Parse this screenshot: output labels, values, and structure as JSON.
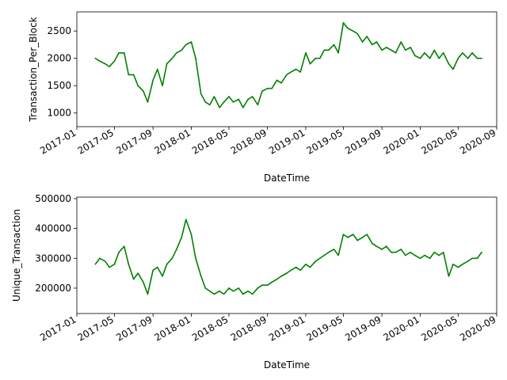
{
  "chart_data": [
    {
      "type": "line",
      "xlabel": "DateTime",
      "ylabel": "Transaction_Per_Block",
      "color": "#008000",
      "xlim": [
        "2017-01-01",
        "2020-09-01"
      ],
      "ylim": [
        750,
        2850
      ],
      "yticks": [
        1000,
        1500,
        2000,
        2500
      ],
      "xticks": [
        "2017-01",
        "2017-05",
        "2017-09",
        "2018-01",
        "2018-05",
        "2018-09",
        "2019-01",
        "2019-05",
        "2019-09",
        "2020-01",
        "2020-05",
        "2020-09"
      ],
      "x": [
        "2017-03-01",
        "2017-03-15",
        "2017-04-01",
        "2017-04-15",
        "2017-05-01",
        "2017-05-15",
        "2017-06-01",
        "2017-06-15",
        "2017-07-01",
        "2017-07-15",
        "2017-08-01",
        "2017-08-15",
        "2017-09-01",
        "2017-09-15",
        "2017-10-01",
        "2017-10-15",
        "2017-11-01",
        "2017-11-15",
        "2017-12-01",
        "2017-12-15",
        "2018-01-01",
        "2018-01-15",
        "2018-02-01",
        "2018-02-15",
        "2018-03-01",
        "2018-03-15",
        "2018-04-01",
        "2018-04-15",
        "2018-05-01",
        "2018-05-15",
        "2018-06-01",
        "2018-06-15",
        "2018-07-01",
        "2018-07-15",
        "2018-08-01",
        "2018-08-15",
        "2018-09-01",
        "2018-09-15",
        "2018-10-01",
        "2018-10-15",
        "2018-11-01",
        "2018-11-15",
        "2018-12-01",
        "2018-12-15",
        "2019-01-01",
        "2019-01-15",
        "2019-02-01",
        "2019-02-15",
        "2019-03-01",
        "2019-03-15",
        "2019-04-01",
        "2019-04-15",
        "2019-05-01",
        "2019-05-15",
        "2019-06-01",
        "2019-06-15",
        "2019-07-01",
        "2019-07-15",
        "2019-08-01",
        "2019-08-15",
        "2019-09-01",
        "2019-09-15",
        "2019-10-01",
        "2019-10-15",
        "2019-11-01",
        "2019-11-15",
        "2019-12-01",
        "2019-12-15",
        "2020-01-01",
        "2020-01-15",
        "2020-02-01",
        "2020-02-15",
        "2020-03-01",
        "2020-03-15",
        "2020-04-01",
        "2020-04-15",
        "2020-05-01",
        "2020-05-15",
        "2020-06-01",
        "2020-06-15",
        "2020-07-01",
        "2020-07-15"
      ],
      "values": [
        2000,
        1950,
        1900,
        1850,
        1950,
        2100,
        2100,
        1700,
        1700,
        1500,
        1400,
        1200,
        1600,
        1800,
        1500,
        1900,
        2000,
        2100,
        2150,
        2250,
        2300,
        2000,
        1350,
        1200,
        1150,
        1300,
        1100,
        1200,
        1300,
        1200,
        1250,
        1100,
        1250,
        1300,
        1150,
        1400,
        1450,
        1450,
        1600,
        1550,
        1700,
        1750,
        1800,
        1750,
        2100,
        1900,
        2000,
        2000,
        2150,
        2150,
        2250,
        2100,
        2650,
        2550,
        2500,
        2450,
        2300,
        2400,
        2250,
        2300,
        2150,
        2200,
        2150,
        2100,
        2300,
        2150,
        2200,
        2050,
        2000,
        2100,
        2000,
        2150,
        2000,
        2100,
        1900,
        1800,
        2000,
        2100,
        2000,
        2100,
        2000,
        2000
      ]
    },
    {
      "type": "line",
      "xlabel": "DateTime",
      "ylabel": "Unique_Transaction",
      "color": "#008000",
      "xlim": [
        "2017-01-01",
        "2020-09-01"
      ],
      "ylim": [
        115000,
        505000
      ],
      "yticks": [
        200000,
        300000,
        400000,
        500000
      ],
      "xticks": [
        "2017-01",
        "2017-05",
        "2017-09",
        "2018-01",
        "2018-05",
        "2018-09",
        "2019-01",
        "2019-05",
        "2019-09",
        "2020-01",
        "2020-05",
        "2020-09"
      ],
      "x": [
        "2017-03-01",
        "2017-03-15",
        "2017-04-01",
        "2017-04-15",
        "2017-05-01",
        "2017-05-15",
        "2017-06-01",
        "2017-06-15",
        "2017-07-01",
        "2017-07-15",
        "2017-08-01",
        "2017-08-15",
        "2017-09-01",
        "2017-09-15",
        "2017-10-01",
        "2017-10-15",
        "2017-11-01",
        "2017-11-15",
        "2017-12-01",
        "2017-12-15",
        "2018-01-01",
        "2018-01-15",
        "2018-02-01",
        "2018-02-15",
        "2018-03-01",
        "2018-03-15",
        "2018-04-01",
        "2018-04-15",
        "2018-05-01",
        "2018-05-15",
        "2018-06-01",
        "2018-06-15",
        "2018-07-01",
        "2018-07-15",
        "2018-08-01",
        "2018-08-15",
        "2018-09-01",
        "2018-09-15",
        "2018-10-01",
        "2018-10-15",
        "2018-11-01",
        "2018-11-15",
        "2018-12-01",
        "2018-12-15",
        "2019-01-01",
        "2019-01-15",
        "2019-02-01",
        "2019-02-15",
        "2019-03-01",
        "2019-03-15",
        "2019-04-01",
        "2019-04-15",
        "2019-05-01",
        "2019-05-15",
        "2019-06-01",
        "2019-06-15",
        "2019-07-01",
        "2019-07-15",
        "2019-08-01",
        "2019-08-15",
        "2019-09-01",
        "2019-09-15",
        "2019-10-01",
        "2019-10-15",
        "2019-11-01",
        "2019-11-15",
        "2019-12-01",
        "2019-12-15",
        "2020-01-01",
        "2020-01-15",
        "2020-02-01",
        "2020-02-15",
        "2020-03-01",
        "2020-03-15",
        "2020-04-01",
        "2020-04-15",
        "2020-05-01",
        "2020-05-15",
        "2020-06-01",
        "2020-06-15",
        "2020-07-01",
        "2020-07-15"
      ],
      "values": [
        280000,
        300000,
        290000,
        270000,
        280000,
        320000,
        340000,
        280000,
        230000,
        250000,
        220000,
        180000,
        260000,
        270000,
        240000,
        280000,
        300000,
        330000,
        370000,
        430000,
        380000,
        300000,
        240000,
        200000,
        190000,
        180000,
        190000,
        180000,
        200000,
        190000,
        200000,
        180000,
        190000,
        180000,
        200000,
        210000,
        210000,
        220000,
        230000,
        240000,
        250000,
        260000,
        270000,
        260000,
        280000,
        270000,
        290000,
        300000,
        310000,
        320000,
        330000,
        310000,
        380000,
        370000,
        380000,
        360000,
        370000,
        380000,
        350000,
        340000,
        330000,
        340000,
        320000,
        320000,
        330000,
        310000,
        320000,
        310000,
        300000,
        310000,
        300000,
        320000,
        310000,
        320000,
        240000,
        280000,
        270000,
        280000,
        290000,
        300000,
        300000,
        320000
      ]
    }
  ]
}
